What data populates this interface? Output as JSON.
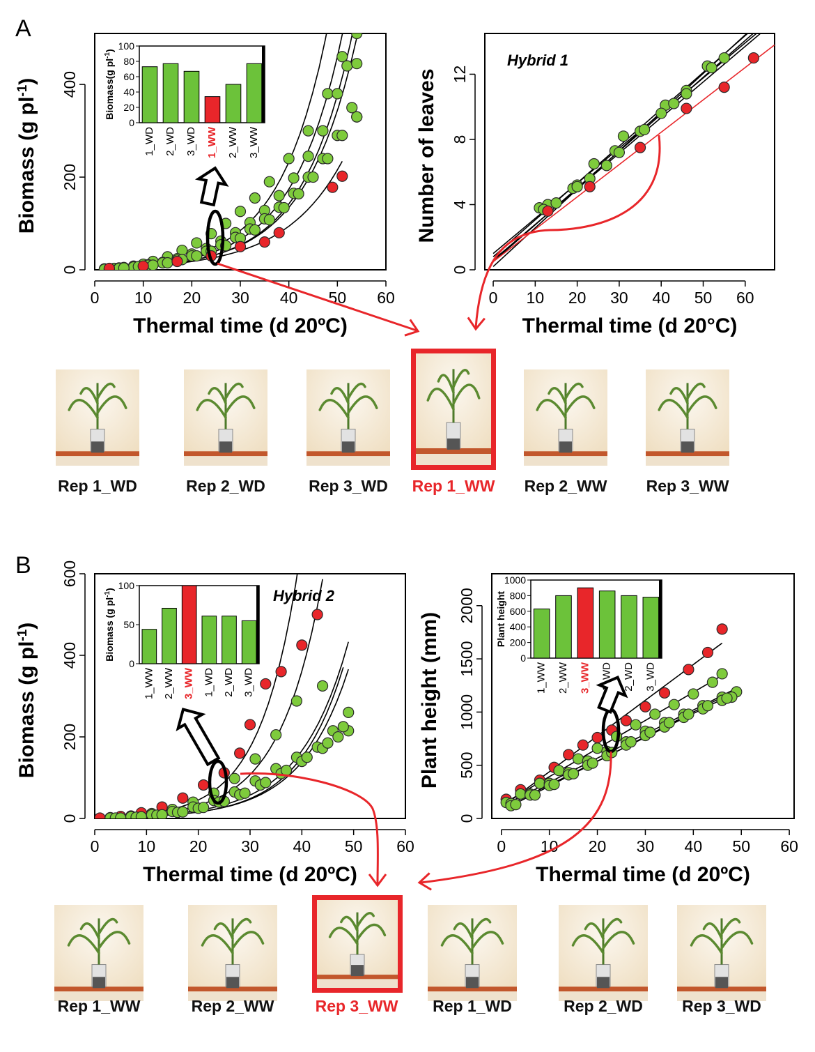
{
  "panels": [
    {
      "letter": "A"
    },
    {
      "letter": "B"
    }
  ],
  "chart_data": [
    {
      "id": "A-biomass",
      "type": "scatter",
      "title": "",
      "xlabel": "Thermal time (d 20ºC)",
      "ylabel": "Biomass (g pl-1)",
      "xlim": [
        0,
        60
      ],
      "ylim": [
        0,
        510
      ],
      "xticks": [
        0,
        10,
        20,
        30,
        40,
        50,
        60
      ],
      "yticks": [
        0,
        200,
        400
      ],
      "fit": "exponential",
      "series": [
        {
          "color": "#7ecb3c",
          "x": [
            2,
            4,
            6,
            8,
            10,
            12,
            15,
            18,
            21,
            24,
            27,
            30,
            33,
            36,
            40,
            44,
            48,
            51,
            54
          ],
          "y": [
            2,
            3,
            5,
            8,
            12,
            18,
            28,
            42,
            58,
            78,
            100,
            126,
            155,
            190,
            240,
            300,
            380,
            460,
            510
          ]
        },
        {
          "color": "#7ecb3c",
          "x": [
            2,
            5,
            8,
            11,
            14,
            17,
            20,
            23,
            26,
            29,
            32,
            35,
            38,
            41,
            44,
            47,
            50,
            52,
            54
          ],
          "y": [
            2,
            4,
            7,
            11,
            16,
            24,
            34,
            46,
            62,
            80,
            102,
            128,
            160,
            198,
            245,
            300,
            380,
            440,
            445
          ]
        },
        {
          "color": "#7ecb3c",
          "x": [
            2,
            5,
            8,
            11,
            14,
            17,
            20,
            23,
            26,
            29,
            32,
            35,
            38,
            41,
            44,
            47,
            50,
            53,
            54
          ],
          "y": [
            1,
            3,
            6,
            10,
            15,
            21,
            30,
            40,
            54,
            70,
            88,
            110,
            135,
            165,
            200,
            240,
            290,
            350,
            330
          ]
        },
        {
          "color": "#7ecb3c",
          "x": [
            3,
            6,
            9,
            12,
            15,
            18,
            21,
            24,
            27,
            30,
            33,
            36,
            39,
            42,
            45,
            48,
            51,
            54
          ],
          "y": [
            2,
            4,
            7,
            10,
            15,
            22,
            30,
            40,
            52,
            68,
            86,
            108,
            134,
            164,
            200,
            240,
            290,
            330
          ]
        },
        {
          "color": "#e8262a",
          "x": [
            3,
            10,
            17,
            24,
            30,
            35,
            38,
            49,
            51
          ],
          "y": [
            3,
            8,
            18,
            30,
            50,
            60,
            80,
            178,
            202
          ]
        }
      ],
      "inset": {
        "type": "bar",
        "ylabel": "Biomass(g pl-1)",
        "ylim": [
          0,
          100
        ],
        "yticks": [
          0,
          20,
          40,
          60,
          80,
          100
        ],
        "categories": [
          "1_WD",
          "2_WD",
          "3_WD",
          "1_WW",
          "2_WW",
          "3_WW"
        ],
        "values": [
          73,
          77,
          67,
          34,
          50,
          77
        ],
        "highlight_index": 3
      }
    },
    {
      "id": "A-leaves",
      "type": "scatter",
      "title": "Hybrid 1",
      "xlabel": "Thermal time (d 20°C)",
      "ylabel": "Number of leaves",
      "xlim": [
        -2,
        67
      ],
      "ylim": [
        0,
        14.5
      ],
      "xticks": [
        0,
        10,
        20,
        30,
        40,
        50,
        60
      ],
      "yticks": [
        0,
        4,
        8,
        12
      ],
      "fit": "linear",
      "series": [
        {
          "color": "#7ecb3c",
          "x": [
            11,
            13,
            19,
            20,
            24,
            29,
            31,
            35,
            41,
            43,
            46,
            51,
            55
          ],
          "y": [
            3.8,
            4.0,
            5.0,
            5.2,
            6.5,
            7.3,
            8.2,
            8.5,
            10.1,
            10.2,
            11.0,
            12.5,
            13.0
          ]
        },
        {
          "color": "#7ecb3c",
          "x": [
            12,
            15,
            20,
            23,
            27,
            30,
            36,
            40,
            46,
            52
          ],
          "y": [
            3.7,
            4.1,
            5.1,
            5.6,
            6.4,
            7.2,
            8.6,
            9.6,
            10.8,
            12.4
          ]
        },
        {
          "color": "#e8262a",
          "x": [
            13,
            23,
            35,
            46,
            55,
            62
          ],
          "y": [
            3.6,
            5.1,
            7.5,
            9.9,
            11.2,
            13.0
          ]
        }
      ],
      "fit_lines": [
        {
          "color": "#000000",
          "x0": 0,
          "y0": 0.8,
          "x1": 65,
          "y1": 15.5
        },
        {
          "color": "#000000",
          "x0": 0,
          "y0": 0.5,
          "x1": 65,
          "y1": 15.2
        },
        {
          "color": "#000000",
          "x0": 0,
          "y0": 1.0,
          "x1": 65,
          "y1": 15.0
        },
        {
          "color": "#000000",
          "x0": 0,
          "y0": 0.2,
          "x1": 65,
          "y1": 15.6
        },
        {
          "color": "#000000",
          "x0": 0,
          "y0": 0.6,
          "x1": 65,
          "y1": 14.8
        },
        {
          "color": "#e8262a",
          "x0": 0,
          "y0": 0.5,
          "x1": 67,
          "y1": 13.8
        }
      ]
    },
    {
      "id": "B-biomass",
      "type": "scatter",
      "title": "Hybrid 2",
      "xlabel": "Thermal time (d 20ºC)",
      "ylabel": "Biomass (g pl-1)",
      "xlim": [
        0,
        60
      ],
      "ylim": [
        0,
        600
      ],
      "xticks": [
        0,
        10,
        20,
        30,
        40,
        50,
        60
      ],
      "yticks": [
        0,
        200,
        400,
        600
      ],
      "fit": "exponential",
      "series": [
        {
          "color": "#e8262a",
          "x": [
            1,
            5,
            9,
            13,
            17,
            21,
            25,
            28,
            30,
            33,
            36,
            40,
            43
          ],
          "y": [
            1,
            5,
            14,
            28,
            50,
            82,
            112,
            160,
            230,
            330,
            360,
            425,
            500
          ]
        },
        {
          "color": "#7ecb3c",
          "x": [
            3,
            7,
            11,
            15,
            19,
            23,
            27,
            31,
            35,
            39,
            44
          ],
          "y": [
            2,
            6,
            12,
            22,
            40,
            62,
            98,
            146,
            205,
            288,
            325
          ]
        },
        {
          "color": "#7ecb3c",
          "x": [
            3,
            7,
            11,
            15,
            19,
            23,
            27,
            31,
            35,
            39,
            43,
            46,
            49
          ],
          "y": [
            1,
            4,
            9,
            17,
            28,
            44,
            65,
            92,
            122,
            150,
            175,
            215,
            260
          ]
        },
        {
          "color": "#7ecb3c",
          "x": [
            4,
            8,
            12,
            16,
            20,
            24,
            28,
            32,
            36,
            40,
            44,
            47,
            49
          ],
          "y": [
            1,
            3,
            8,
            15,
            25,
            40,
            58,
            82,
            110,
            140,
            172,
            200,
            215
          ]
        },
        {
          "color": "#7ecb3c",
          "x": [
            5,
            9,
            13,
            17,
            21,
            25,
            29,
            33,
            37,
            41,
            45,
            48
          ],
          "y": [
            1,
            4,
            9,
            16,
            27,
            42,
            62,
            88,
            118,
            150,
            185,
            225
          ]
        }
      ],
      "inset": {
        "type": "bar",
        "ylabel": "Biomass (g pl-1)",
        "ylim": [
          0,
          100
        ],
        "yticks": [
          0,
          50,
          100
        ],
        "categories": [
          "1_WW",
          "2_WW",
          "3_WW",
          "1_WD",
          "2_WD",
          "3_WD"
        ],
        "values": [
          44,
          71,
          100,
          61,
          61,
          55
        ],
        "highlight_index": 2
      }
    },
    {
      "id": "B-height",
      "type": "scatter",
      "title": "",
      "xlabel": "Thermal time (d 20ºC)",
      "ylabel": "Plant height (mm)",
      "xlim": [
        -2,
        61
      ],
      "ylim": [
        0,
        2300
      ],
      "xticks": [
        0,
        10,
        20,
        30,
        40,
        50,
        60
      ],
      "yticks": [
        0,
        500,
        1000,
        1500,
        2000
      ],
      "fit": "linear",
      "series": [
        {
          "color": "#e8262a",
          "x": [
            1,
            4,
            8,
            11,
            14,
            17,
            20,
            23,
            26,
            30,
            34,
            39,
            43,
            46
          ],
          "y": [
            180,
            270,
            360,
            480,
            600,
            690,
            760,
            830,
            920,
            1050,
            1180,
            1400,
            1560,
            1780
          ]
        },
        {
          "color": "#7ecb3c",
          "x": [
            1,
            4,
            8,
            12,
            16,
            20,
            24,
            28,
            32,
            36,
            40,
            44,
            46
          ],
          "y": [
            150,
            230,
            330,
            450,
            560,
            660,
            770,
            880,
            980,
            1070,
            1170,
            1280,
            1360
          ]
        },
        {
          "color": "#7ecb3c",
          "x": [
            2,
            6,
            10,
            14,
            18,
            22,
            26,
            30,
            34,
            38,
            42,
            46,
            49
          ],
          "y": [
            140,
            230,
            330,
            430,
            540,
            630,
            720,
            820,
            900,
            980,
            1060,
            1140,
            1190
          ]
        },
        {
          "color": "#7ecb3c",
          "x": [
            2,
            6,
            10,
            14,
            18,
            22,
            26,
            30,
            34,
            38,
            42,
            46,
            48
          ],
          "y": [
            120,
            220,
            310,
            410,
            500,
            590,
            690,
            780,
            860,
            950,
            1030,
            1110,
            1140
          ]
        },
        {
          "color": "#7ecb3c",
          "x": [
            3,
            7,
            11,
            15,
            19,
            23,
            27,
            31,
            35,
            39,
            43,
            47
          ],
          "y": [
            130,
            220,
            320,
            420,
            520,
            620,
            720,
            810,
            900,
            980,
            1060,
            1130
          ]
        }
      ],
      "inset": {
        "type": "bar",
        "ylabel": "Plant height",
        "ylim": [
          0,
          1000
        ],
        "yticks": [
          0,
          200,
          400,
          600,
          800,
          1000
        ],
        "categories": [
          "1_WW",
          "2_WW",
          "3_WW",
          "1_WD",
          "2_WD",
          "3_WD"
        ],
        "values": [
          630,
          800,
          900,
          860,
          800,
          780
        ],
        "highlight_index": 2
      }
    }
  ],
  "plants_a": [
    {
      "label": "Rep 1_WD",
      "highlight": false
    },
    {
      "label": "Rep 2_WD",
      "highlight": false
    },
    {
      "label": "Rep 3_WD",
      "highlight": false
    },
    {
      "label": "Rep 1_WW",
      "highlight": true
    },
    {
      "label": "Rep 2_WW",
      "highlight": false
    },
    {
      "label": "Rep 3_WW",
      "highlight": false
    }
  ],
  "plants_b": [
    {
      "label": "Rep 1_WW",
      "highlight": false
    },
    {
      "label": "Rep 2_WW",
      "highlight": false
    },
    {
      "label": "Rep 3_WW",
      "highlight": true
    },
    {
      "label": "Rep 1_WD",
      "highlight": false
    },
    {
      "label": "Rep 2_WD",
      "highlight": false
    },
    {
      "label": "Rep 3_WD",
      "highlight": false
    }
  ],
  "colors": {
    "green": "#7ecb3c",
    "red": "#e8262a",
    "bar_green": "#6cc23a"
  }
}
